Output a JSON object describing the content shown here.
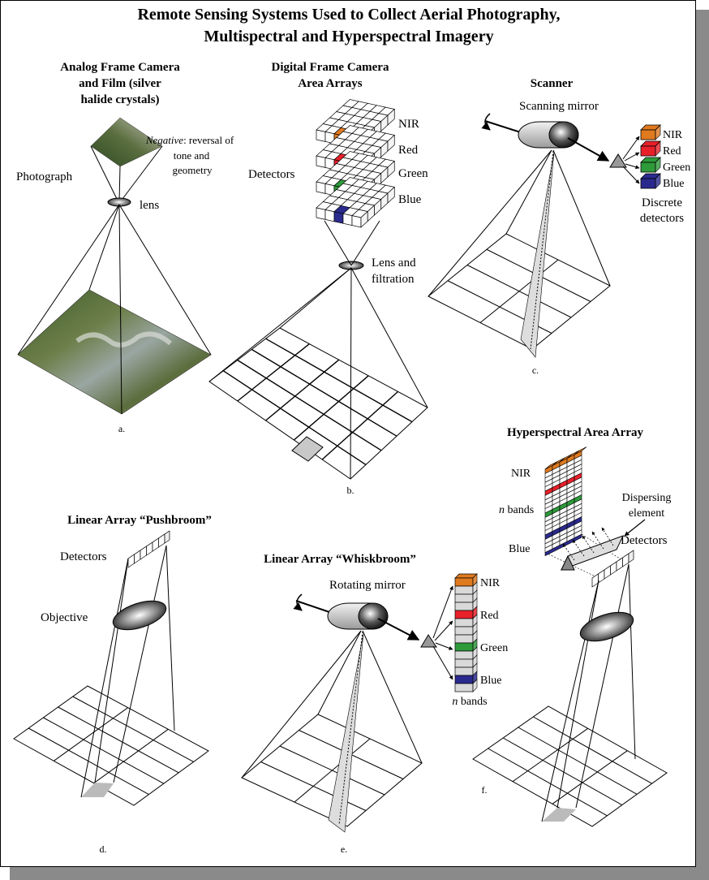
{
  "title": {
    "line1": "Remote Sensing Systems Used to Collect Aerial Photography,",
    "line2": "Multispectral and Hyperspectral Imagery"
  },
  "panel_a": {
    "heading1": "Analog Frame Camera",
    "heading2": "and Film (silver",
    "heading3": "halide crystals)",
    "photograph": "Photograph",
    "lens": "lens",
    "negative_italic": "Negative",
    "negative_rest": ": reversal of",
    "negative_line2": "tone and",
    "negative_line3": "geometry",
    "caption": "a."
  },
  "panel_b": {
    "heading1": "Digital Frame Camera",
    "heading2": "Area Arrays",
    "detectors": "Detectors",
    "bands": [
      "NIR",
      "Red",
      "Green",
      "Blue"
    ],
    "lens1": "Lens and",
    "lens2": "filtration",
    "caption": "b."
  },
  "panel_c": {
    "heading": "Scanner",
    "mirror": "Scanning mirror",
    "bands": [
      "NIR",
      "Red",
      "Green",
      "Blue"
    ],
    "discrete1": "Discrete",
    "discrete2": "detectors",
    "caption": "c."
  },
  "panel_d": {
    "heading": "Linear Array “Pushbroom”",
    "detectors": "Detectors",
    "objective": "Objective",
    "caption": "d."
  },
  "panel_e": {
    "heading": "Linear Array “Whiskbroom”",
    "mirror": "Rotating mirror",
    "bands": [
      "NIR",
      "Red",
      "Green",
      "Blue"
    ],
    "n_italic": "n",
    "n_rest": " bands",
    "caption": "e."
  },
  "panel_f": {
    "heading": "Hyperspectral Area Array",
    "nir": "NIR",
    "n_italic": "n",
    "n_rest": " bands",
    "blue": "Blue",
    "dispersing1": "Dispersing",
    "dispersing2": "element",
    "detectors": "Detectors",
    "caption": "f."
  },
  "colors": {
    "nir": "#e07a1f",
    "red": "#e8202a",
    "green": "#2e9a3a",
    "blue": "#2a2a8e",
    "shadow": "#8a8a8a"
  }
}
